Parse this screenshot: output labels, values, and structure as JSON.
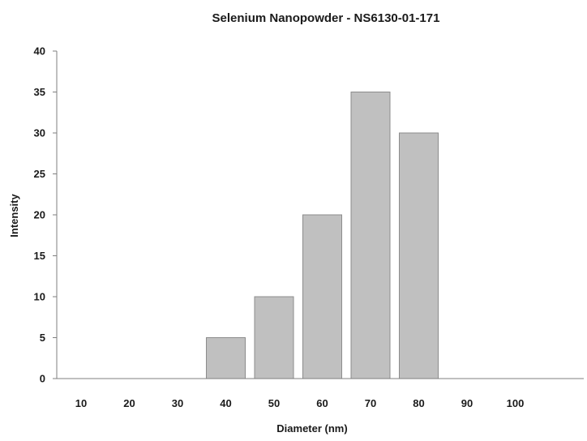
{
  "chart_data": {
    "type": "bar",
    "title": "Selenium Nanopowder - NS6130-01-171",
    "xlabel": "Diameter (nm)",
    "ylabel": "Intensity",
    "categories": [
      "10",
      "20",
      "30",
      "40",
      "50",
      "60",
      "70",
      "80",
      "90",
      "100"
    ],
    "values": [
      0,
      0,
      0,
      5,
      10,
      20,
      35,
      30,
      0,
      0
    ],
    "ylim": [
      0,
      40
    ],
    "yticks": [
      "0",
      "5",
      "10",
      "15",
      "20",
      "25",
      "30",
      "35",
      "40"
    ],
    "grid": false,
    "legend": "none",
    "bar_color": "#c0c0c0",
    "bar_edge_color": "#8c8c8c",
    "axis_color": "#7f7f7f"
  }
}
